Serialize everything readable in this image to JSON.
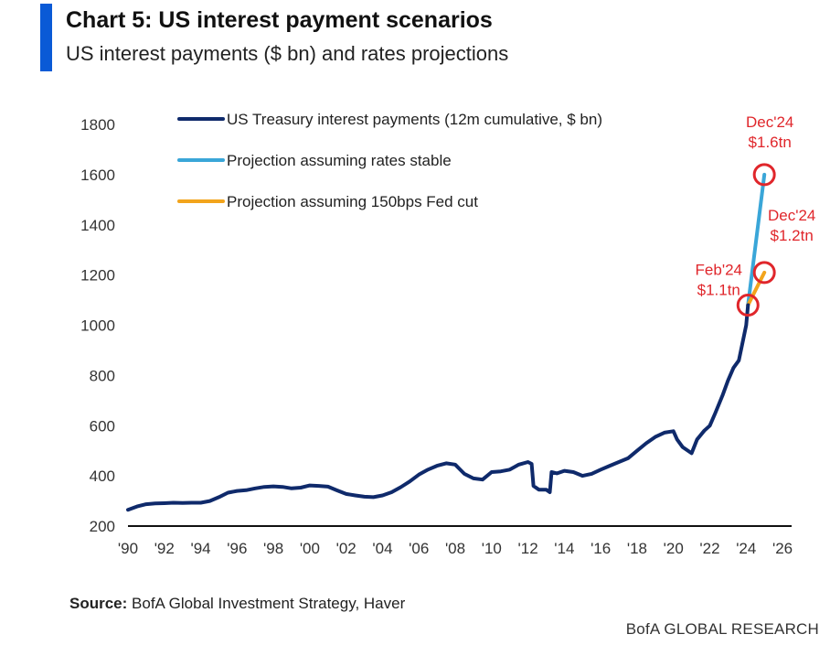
{
  "header": {
    "title": "Chart 5: US interest payment scenarios",
    "subtitle": "US interest payments ($ bn) and rates projections"
  },
  "footer": {
    "source_label": "Source:",
    "source_text": "BofA Global Investment Strategy, Haver",
    "brand": "BofA GLOBAL RESEARCH"
  },
  "colors": {
    "accent": "#0a5ad6",
    "history": "#0f2a6b",
    "stable": "#3aa6d8",
    "cut": "#f2a41c",
    "annotation": "#e0262b"
  },
  "chart_data": {
    "type": "line",
    "title": "US interest payments ($ bn) and rates projections",
    "xlabel": "",
    "ylabel": "",
    "xlim": [
      1990,
      2026.5
    ],
    "ylim": [
      200,
      1800
    ],
    "x_ticks": [
      "'90",
      "'92",
      "'94",
      "'96",
      "'98",
      "'00",
      "'02",
      "'04",
      "'06",
      "'08",
      "'10",
      "'12",
      "'14",
      "'16",
      "'18",
      "'20",
      "'22",
      "'24",
      "'26"
    ],
    "y_ticks": [
      "200",
      "400",
      "600",
      "800",
      "1000",
      "1200",
      "1400",
      "1600",
      "1800"
    ],
    "legend_position": "top-left",
    "series": [
      {
        "name": "US Treasury interest payments (12m cumulative, $ bn)",
        "color_key": "history",
        "points": [
          [
            1990,
            265
          ],
          [
            1990.5,
            278
          ],
          [
            1991,
            287
          ],
          [
            1991.5,
            290
          ],
          [
            1992,
            291
          ],
          [
            1992.5,
            293
          ],
          [
            1993,
            292
          ],
          [
            1993.5,
            293
          ],
          [
            1994,
            293
          ],
          [
            1994.5,
            300
          ],
          [
            1995,
            315
          ],
          [
            1995.5,
            333
          ],
          [
            1996,
            340
          ],
          [
            1996.5,
            343
          ],
          [
            1997,
            350
          ],
          [
            1997.5,
            356
          ],
          [
            1998,
            358
          ],
          [
            1998.5,
            356
          ],
          [
            1999,
            350
          ],
          [
            1999.5,
            353
          ],
          [
            2000,
            362
          ],
          [
            2000.5,
            360
          ],
          [
            2001,
            357
          ],
          [
            2001.5,
            342
          ],
          [
            2002,
            328
          ],
          [
            2002.5,
            322
          ],
          [
            2003,
            317
          ],
          [
            2003.5,
            315
          ],
          [
            2004,
            322
          ],
          [
            2004.5,
            335
          ],
          [
            2005,
            355
          ],
          [
            2005.5,
            378
          ],
          [
            2006,
            405
          ],
          [
            2006.5,
            425
          ],
          [
            2007,
            440
          ],
          [
            2007.5,
            450
          ],
          [
            2008,
            445
          ],
          [
            2008.5,
            408
          ],
          [
            2009,
            390
          ],
          [
            2009.5,
            385
          ],
          [
            2010,
            415
          ],
          [
            2010.5,
            418
          ],
          [
            2011,
            425
          ],
          [
            2011.5,
            445
          ],
          [
            2012,
            455
          ],
          [
            2012.2,
            448
          ],
          [
            2012.3,
            360
          ],
          [
            2012.6,
            345
          ],
          [
            2013,
            345
          ],
          [
            2013.2,
            335
          ],
          [
            2013.3,
            415
          ],
          [
            2013.6,
            410
          ],
          [
            2014,
            420
          ],
          [
            2014.5,
            415
          ],
          [
            2015,
            400
          ],
          [
            2015.5,
            408
          ],
          [
            2016,
            425
          ],
          [
            2016.5,
            440
          ],
          [
            2017,
            455
          ],
          [
            2017.5,
            470
          ],
          [
            2018,
            500
          ],
          [
            2018.5,
            530
          ],
          [
            2019,
            555
          ],
          [
            2019.5,
            572
          ],
          [
            2020,
            578
          ],
          [
            2020.2,
            545
          ],
          [
            2020.5,
            515
          ],
          [
            2021,
            490
          ],
          [
            2021.3,
            545
          ],
          [
            2021.7,
            580
          ],
          [
            2022,
            600
          ],
          [
            2022.3,
            650
          ],
          [
            2022.7,
            720
          ],
          [
            2023,
            780
          ],
          [
            2023.3,
            830
          ],
          [
            2023.6,
            860
          ],
          [
            2023.8,
            930
          ],
          [
            2024,
            1000
          ],
          [
            2024.1,
            1080
          ]
        ]
      },
      {
        "name": "Projection assuming rates stable",
        "color_key": "stable",
        "points": [
          [
            2024.1,
            1080
          ],
          [
            2025,
            1600
          ]
        ]
      },
      {
        "name": "Projection assuming 150bps Fed cut",
        "color_key": "cut",
        "points": [
          [
            2024.1,
            1080
          ],
          [
            2025,
            1210
          ]
        ]
      }
    ],
    "annotations": [
      {
        "lines": [
          "Feb'24",
          "$1.1tn"
        ],
        "x": 2024.1,
        "y": 1080,
        "label_side": "left"
      },
      {
        "lines": [
          "Dec'24",
          "$1.6tn"
        ],
        "x": 2025,
        "y": 1600,
        "label_side": "above"
      },
      {
        "lines": [
          "Dec'24",
          "$1.2tn"
        ],
        "x": 2025,
        "y": 1210,
        "label_side": "right"
      }
    ]
  }
}
